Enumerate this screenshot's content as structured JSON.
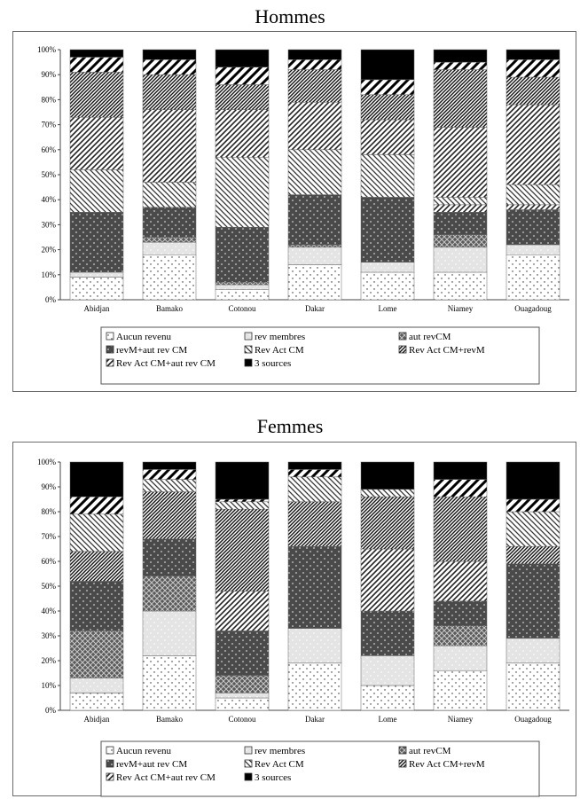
{
  "chart_data": [
    {
      "type": "bar",
      "stacked": true,
      "title": "Hommes",
      "categories": [
        "Abidjan",
        "Bamako",
        "Cotonou",
        "Dakar",
        "Lome",
        "Niamey",
        "Ouagadoug"
      ],
      "y_ticks": [
        "0%",
        "10%",
        "20%",
        "30%",
        "40%",
        "50%",
        "60%",
        "70%",
        "80%",
        "90%",
        "100%"
      ],
      "ylim": [
        0,
        100
      ],
      "legend_position": "bottom",
      "series": [
        {
          "name": "Aucun revenu",
          "values": [
            9,
            18,
            4,
            14,
            11,
            11,
            18
          ]
        },
        {
          "name": "rev membres",
          "values": [
            2,
            5,
            2,
            7,
            4,
            10,
            4
          ]
        },
        {
          "name": "aut revCM",
          "values": [
            0,
            2,
            1,
            1,
            0,
            5,
            0
          ]
        },
        {
          "name": "revM+aut rev CM",
          "values": [
            24,
            12,
            22,
            20,
            26,
            9,
            14
          ]
        },
        {
          "name": "Rev Act CM",
          "values": [
            0,
            0,
            0,
            0,
            0,
            3,
            2
          ]
        },
        {
          "name": "Rev Act CM+revM",
          "values": [
            17,
            10,
            28,
            18,
            17,
            3,
            8
          ]
        },
        {
          "name": "Rev Act CM+aut rev CM",
          "values": [
            21,
            29,
            19,
            19,
            14,
            28,
            32
          ]
        },
        {
          "name": "",
          "values": [
            18,
            14,
            10,
            13,
            10,
            23,
            11
          ]
        },
        {
          "name": "",
          "values": [
            6,
            6,
            7,
            4,
            6,
            3,
            7
          ]
        },
        {
          "name": "3 sources",
          "values": [
            3,
            4,
            7,
            4,
            12,
            5,
            4
          ]
        }
      ]
    },
    {
      "type": "bar",
      "stacked": true,
      "title": "Femmes",
      "categories": [
        "Abidjan",
        "Bamako",
        "Cotonou",
        "Dakar",
        "Lome",
        "Niamey",
        "Ouagadoug"
      ],
      "y_ticks": [
        "0%",
        "10%",
        "20%",
        "30%",
        "40%",
        "50%",
        "60%",
        "70%",
        "80%",
        "90%",
        "100%"
      ],
      "ylim": [
        0,
        100
      ],
      "legend_position": "bottom",
      "series": [
        {
          "name": "Aucun revenu",
          "values": [
            7,
            22,
            5,
            19,
            10,
            16,
            19
          ]
        },
        {
          "name": "rev membres",
          "values": [
            6,
            18,
            2,
            14,
            12,
            10,
            10
          ]
        },
        {
          "name": "aut revCM",
          "values": [
            19,
            14,
            7,
            0,
            0,
            8,
            0
          ]
        },
        {
          "name": "revM+aut rev CM",
          "values": [
            20,
            15,
            18,
            33,
            18,
            10,
            30
          ]
        },
        {
          "name": "Rev Act CM",
          "values": [
            0,
            0,
            16,
            0,
            25,
            16,
            0
          ]
        },
        {
          "name": "Rev Act CM+revM",
          "values": [
            12,
            19,
            33,
            18,
            21,
            26,
            7
          ]
        },
        {
          "name": "Rev Act CM+aut rev CM",
          "values": [
            15,
            5,
            3,
            10,
            3,
            0,
            14
          ]
        },
        {
          "name": "",
          "values": [
            7,
            4,
            1,
            3,
            0,
            7,
            5
          ]
        },
        {
          "name": "3 sources",
          "values": [
            14,
            3,
            15,
            3,
            11,
            7,
            15
          ]
        }
      ]
    }
  ],
  "legend": {
    "items": [
      "Aucun revenu",
      "rev membres",
      "aut revCM",
      "revM+aut rev CM",
      "Rev Act CM",
      "Rev Act CM+revM",
      "Rev Act CM+aut rev CM",
      "3 sources"
    ]
  }
}
